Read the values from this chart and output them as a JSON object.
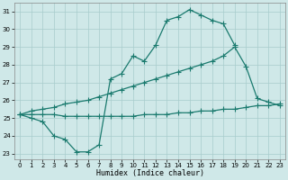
{
  "xlabel": "Humidex (Indice chaleur)",
  "background_color": "#cfe8e8",
  "grid_color": "#a8cccc",
  "line_color": "#1a7a6e",
  "xlim": [
    -0.5,
    23.5
  ],
  "ylim": [
    22.7,
    31.5
  ],
  "yticks": [
    23,
    24,
    25,
    26,
    27,
    28,
    29,
    30,
    31
  ],
  "xticks": [
    0,
    1,
    2,
    3,
    4,
    5,
    6,
    7,
    8,
    9,
    10,
    11,
    12,
    13,
    14,
    15,
    16,
    17,
    18,
    19,
    20,
    21,
    22,
    23
  ],
  "line1_x": [
    0,
    1,
    2,
    3,
    4,
    5,
    6,
    7,
    8,
    9,
    10,
    11,
    12,
    13,
    14,
    15,
    16,
    17,
    18,
    19
  ],
  "line1_y": [
    25.2,
    25.0,
    24.8,
    24.0,
    23.8,
    23.1,
    23.1,
    23.5,
    27.2,
    27.5,
    28.5,
    28.2,
    29.1,
    30.5,
    30.7,
    31.1,
    30.8,
    30.5,
    30.3,
    29.1
  ],
  "line2_x": [
    0,
    1,
    2,
    3,
    4,
    5,
    6,
    7,
    8,
    9,
    10,
    11,
    12,
    13,
    14,
    15,
    16,
    17,
    18,
    19,
    20,
    21,
    22,
    23
  ],
  "line2_y": [
    25.2,
    25.4,
    25.5,
    25.6,
    25.8,
    25.9,
    26.0,
    26.2,
    26.4,
    26.6,
    26.8,
    27.0,
    27.2,
    27.4,
    27.6,
    27.8,
    28.0,
    28.2,
    28.5,
    29.0,
    27.9,
    26.1,
    25.9,
    25.7
  ],
  "line3_x": [
    0,
    1,
    2,
    3,
    4,
    5,
    6,
    7,
    8,
    9,
    10,
    11,
    12,
    13,
    14,
    15,
    16,
    17,
    18,
    19,
    20,
    21,
    22,
    23
  ],
  "line3_y": [
    25.2,
    25.2,
    25.2,
    25.2,
    25.1,
    25.1,
    25.1,
    25.1,
    25.1,
    25.1,
    25.1,
    25.2,
    25.2,
    25.2,
    25.3,
    25.3,
    25.4,
    25.4,
    25.5,
    25.5,
    25.6,
    25.7,
    25.7,
    25.8
  ],
  "lw": 0.9,
  "ms": 2.2,
  "tick_fs": 5,
  "xlabel_fs": 6
}
